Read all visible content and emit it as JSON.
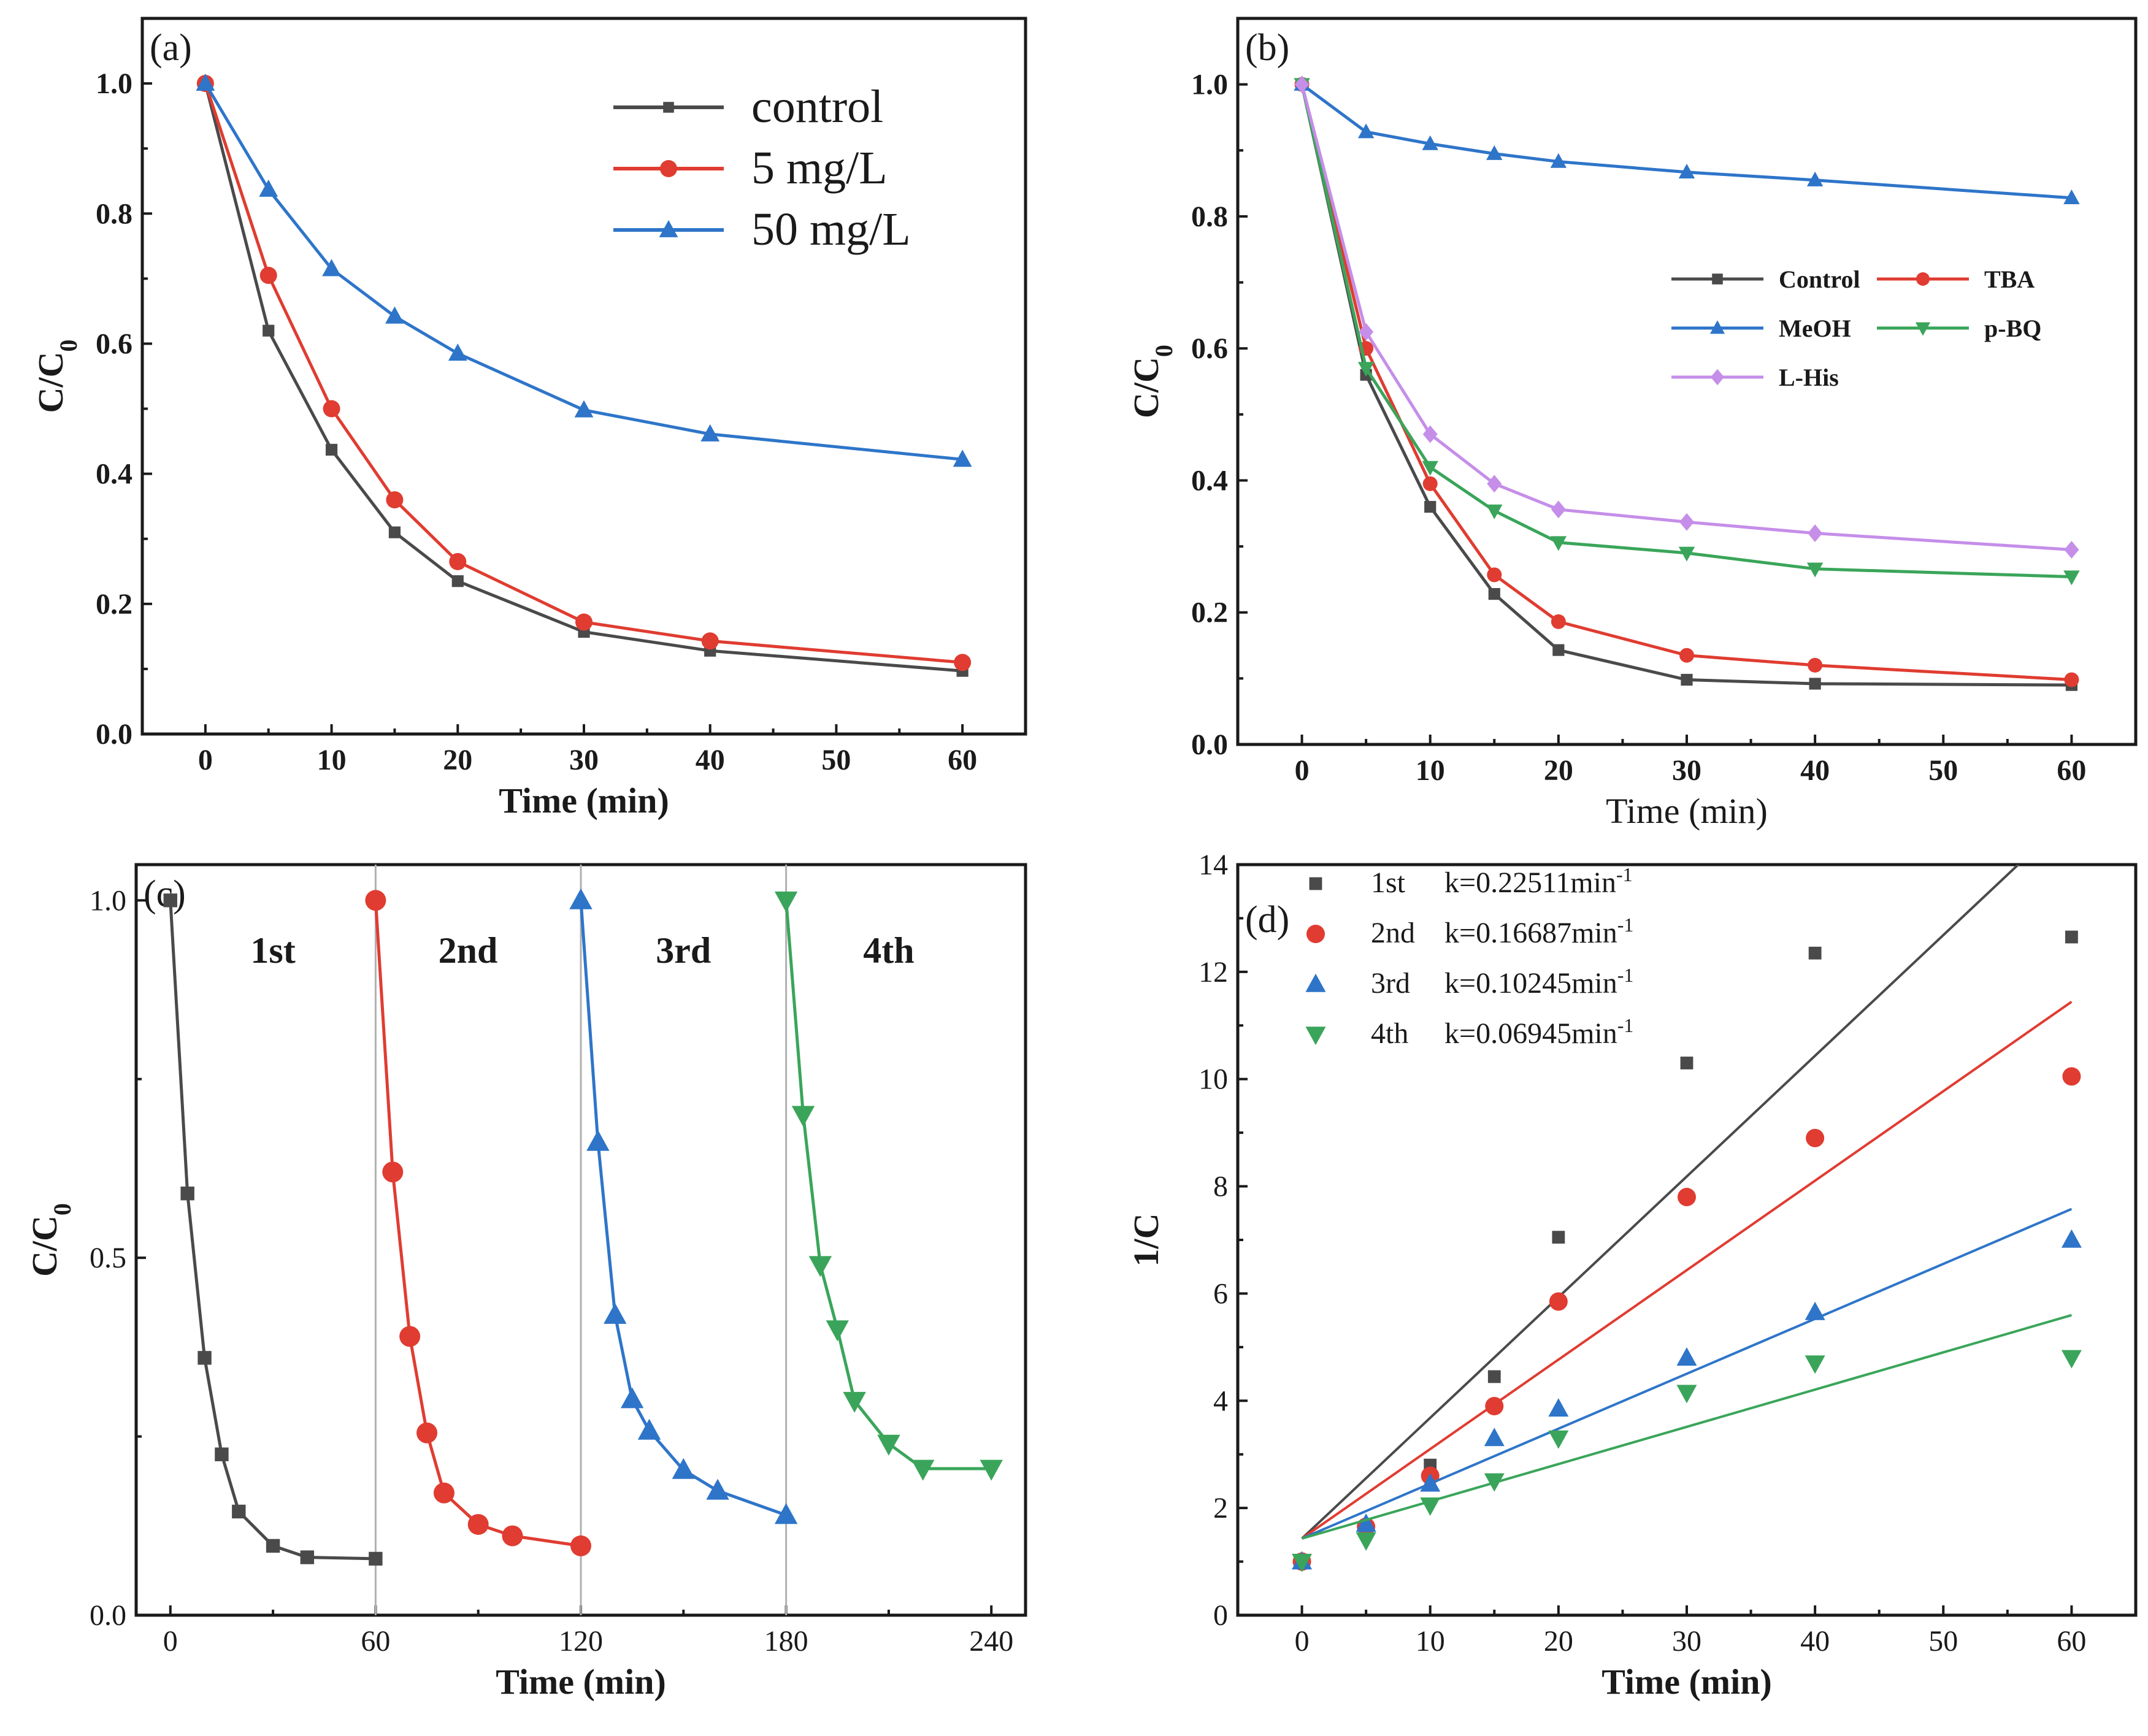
{
  "chart_data": [
    {
      "panel": "(a)",
      "type": "line",
      "xlabel": "Time (min)",
      "ylabel": "C/C0",
      "xlim": [
        -5,
        65
      ],
      "ylim": [
        0,
        1.1
      ],
      "xticks": [
        0,
        10,
        20,
        30,
        40,
        50,
        60
      ],
      "yticks": [
        0.0,
        0.2,
        0.4,
        0.6,
        0.8,
        1.0
      ],
      "x": [
        0,
        5,
        10,
        15,
        20,
        30,
        40,
        60
      ],
      "legend_position": "top-right",
      "series": [
        {
          "name": "control",
          "color": "#4a4a4a",
          "marker": "square",
          "values": [
            1.0,
            0.62,
            0.437,
            0.31,
            0.235,
            0.157,
            0.128,
            0.097
          ]
        },
        {
          "name": "5 mg/L",
          "color": "#e03c31",
          "marker": "circle",
          "values": [
            1.0,
            0.705,
            0.5,
            0.36,
            0.265,
            0.172,
            0.143,
            0.11
          ]
        },
        {
          "name": "50 mg/L",
          "color": "#2e75c9",
          "marker": "triangle-up",
          "values": [
            1.0,
            0.837,
            0.715,
            0.642,
            0.585,
            0.498,
            0.461,
            0.422
          ]
        }
      ]
    },
    {
      "panel": "(b)",
      "type": "line",
      "xlabel": "Time (min)",
      "ylabel": "C/C0",
      "xlim": [
        -5,
        65
      ],
      "ylim": [
        0,
        1.1
      ],
      "xticks": [
        0,
        10,
        20,
        30,
        40,
        50,
        60
      ],
      "yticks": [
        0.0,
        0.2,
        0.4,
        0.6,
        0.8,
        1.0
      ],
      "x": [
        0,
        5,
        10,
        15,
        20,
        30,
        40,
        60
      ],
      "legend_position": "middle-right",
      "series": [
        {
          "name": "Control",
          "color": "#4a4a4a",
          "marker": "square",
          "values": [
            1.0,
            0.56,
            0.36,
            0.228,
            0.143,
            0.098,
            0.092,
            0.09
          ]
        },
        {
          "name": "TBA",
          "color": "#e03c31",
          "marker": "circle",
          "values": [
            1.0,
            0.6,
            0.395,
            0.257,
            0.186,
            0.135,
            0.12,
            0.098
          ]
        },
        {
          "name": "MeOH",
          "color": "#2e75c9",
          "marker": "triangle-up",
          "values": [
            1.0,
            0.928,
            0.91,
            0.895,
            0.883,
            0.867,
            0.855,
            0.828
          ]
        },
        {
          "name": "p-BQ",
          "color": "#3aa55a",
          "marker": "triangle-down",
          "values": [
            1.0,
            0.57,
            0.42,
            0.354,
            0.306,
            0.29,
            0.266,
            0.254
          ]
        },
        {
          "name": "L-His",
          "color": "#c58ee8",
          "marker": "diamond",
          "values": [
            1.0,
            0.625,
            0.47,
            0.395,
            0.356,
            0.337,
            0.32,
            0.295
          ]
        }
      ]
    },
    {
      "panel": "(c)",
      "type": "line",
      "xlabel": "Time (min)",
      "ylabel": "C/C0",
      "xlim": [
        -10,
        250
      ],
      "ylim": [
        0,
        1.05
      ],
      "xticks": [
        0,
        60,
        120,
        180,
        240
      ],
      "yticks": [
        0.0,
        0.5,
        1.0
      ],
      "ytick_labels": [
        "0.0",
        "0.5",
        "1.0"
      ],
      "cycle_dividers": [
        60,
        120,
        180
      ],
      "series": [
        {
          "name": "1st",
          "color": "#4a4a4a",
          "marker": "square",
          "x": [
            0,
            5,
            10,
            15,
            20,
            30,
            40,
            60
          ],
          "values": [
            1.0,
            0.59,
            0.36,
            0.225,
            0.145,
            0.097,
            0.081,
            0.079
          ]
        },
        {
          "name": "2nd",
          "color": "#e03c31",
          "marker": "circle",
          "x": [
            60,
            65,
            70,
            75,
            80,
            90,
            100,
            120
          ],
          "values": [
            1.0,
            0.62,
            0.39,
            0.255,
            0.171,
            0.127,
            0.111,
            0.097
          ]
        },
        {
          "name": "3rd",
          "color": "#2e75c9",
          "marker": "triangle-up",
          "x": [
            120,
            125,
            130,
            135,
            140,
            150,
            160,
            180
          ],
          "values": [
            1.0,
            0.662,
            0.42,
            0.302,
            0.258,
            0.203,
            0.174,
            0.14
          ]
        },
        {
          "name": "4th",
          "color": "#3aa55a",
          "marker": "triangle-down",
          "x": [
            180,
            185,
            190,
            195,
            200,
            210,
            220,
            240
          ],
          "values": [
            1.0,
            0.7,
            0.49,
            0.4,
            0.3,
            0.24,
            0.205,
            0.205
          ]
        }
      ]
    },
    {
      "panel": "(d)",
      "type": "scatter",
      "xlabel": "Time (min)",
      "ylabel": "1/C",
      "xlim": [
        -5,
        65
      ],
      "ylim": [
        0,
        14
      ],
      "xticks": [
        0,
        10,
        20,
        30,
        40,
        50,
        60
      ],
      "yticks": [
        0,
        2,
        4,
        6,
        8,
        10,
        12,
        14
      ],
      "x": [
        0,
        5,
        10,
        15,
        20,
        30,
        40,
        60
      ],
      "legend_position": "top-left",
      "series": [
        {
          "name": "1st",
          "k_label": "k=0.22511min",
          "k": 0.22511,
          "intercept": 1.43,
          "color": "#4a4a4a",
          "marker": "square",
          "values": [
            1.0,
            1.65,
            2.8,
            4.45,
            7.05,
            10.3,
            12.35,
            12.65
          ]
        },
        {
          "name": "2nd",
          "k_label": "k=0.16687min",
          "k": 0.16687,
          "intercept": 1.43,
          "color": "#e03c31",
          "marker": "circle",
          "values": [
            1.0,
            1.65,
            2.6,
            3.9,
            5.85,
            7.8,
            8.9,
            10.05
          ]
        },
        {
          "name": "3rd",
          "k_label": "k=0.10245min",
          "k": 0.10245,
          "intercept": 1.43,
          "color": "#2e75c9",
          "marker": "triangle-up",
          "values": [
            1.0,
            1.7,
            2.45,
            3.3,
            3.85,
            4.8,
            5.65,
            7.0
          ]
        },
        {
          "name": "4th",
          "k_label": "k=0.06945min",
          "k": 0.06945,
          "intercept": 1.43,
          "color": "#3aa55a",
          "marker": "triangle-down",
          "values": [
            1.0,
            1.4,
            2.05,
            2.5,
            3.3,
            4.15,
            4.7,
            4.8
          ]
        }
      ],
      "k_unit_superscript": "-1"
    }
  ]
}
